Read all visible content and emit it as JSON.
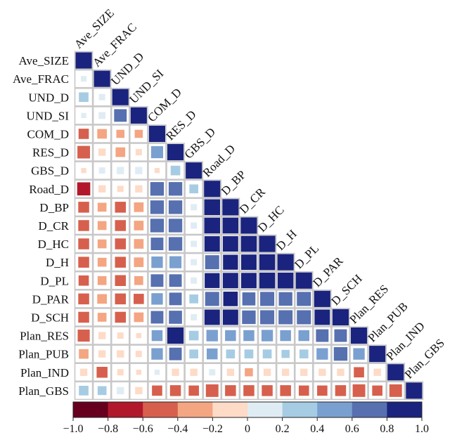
{
  "chart_data": {
    "type": "heatmap",
    "variables": [
      "Ave_SIZE",
      "Ave_FRAC",
      "UND_D",
      "UND_SI",
      "COM_D",
      "RES_D",
      "GBS_D",
      "Road_D",
      "D_BP",
      "D_CR",
      "D_HC",
      "D_H",
      "D_PL",
      "D_PAR",
      "D_SCH",
      "Plan_RES",
      "Plan_PUB",
      "Plan_IND",
      "Plan_GBS"
    ],
    "lower_triangle": [
      [
        1.0
      ],
      [
        0.12,
        1.0
      ],
      [
        0.35,
        0.15,
        1.0
      ],
      [
        0.1,
        0.18,
        0.6,
        1.0
      ],
      [
        -0.4,
        -0.35,
        -0.25,
        -0.25,
        1.0
      ],
      [
        -0.6,
        -0.2,
        -0.35,
        -0.15,
        0.55,
        1.0
      ],
      [
        -0.1,
        0.15,
        0.2,
        0.2,
        -0.1,
        0.35,
        1.0
      ],
      [
        -0.65,
        -0.2,
        -0.15,
        -0.2,
        0.7,
        0.7,
        0.3,
        1.0
      ],
      [
        -0.45,
        -0.3,
        -0.45,
        -0.35,
        0.7,
        0.7,
        0.15,
        0.95,
        1.0
      ],
      [
        -0.45,
        -0.3,
        -0.45,
        -0.35,
        0.7,
        0.7,
        0.15,
        0.95,
        0.95,
        1.0
      ],
      [
        -0.45,
        -0.3,
        -0.45,
        -0.35,
        0.6,
        0.7,
        0.15,
        0.9,
        0.9,
        0.95,
        1.0
      ],
      [
        -0.45,
        -0.3,
        -0.45,
        -0.35,
        0.5,
        0.55,
        0.15,
        0.75,
        0.85,
        0.9,
        0.95,
        1.0
      ],
      [
        -0.4,
        -0.3,
        -0.45,
        -0.3,
        0.6,
        0.6,
        0.15,
        0.85,
        0.9,
        0.9,
        0.95,
        0.95,
        1.0
      ],
      [
        -0.45,
        -0.35,
        -0.45,
        -0.4,
        0.5,
        0.6,
        0.3,
        0.75,
        0.8,
        0.65,
        0.75,
        0.7,
        0.75,
        1.0
      ],
      [
        -0.45,
        -0.3,
        -0.45,
        -0.35,
        0.6,
        0.65,
        0.15,
        0.9,
        0.9,
        0.7,
        0.75,
        0.75,
        0.75,
        0.9,
        1.0
      ],
      [
        -0.55,
        -0.2,
        -0.15,
        -0.1,
        0.45,
        1.0,
        0.35,
        0.5,
        0.45,
        0.45,
        0.5,
        0.45,
        0.45,
        0.6,
        0.6,
        1.0
      ],
      [
        -0.35,
        -0.2,
        -0.2,
        -0.15,
        0.5,
        0.6,
        0.3,
        0.45,
        0.3,
        0.3,
        0.3,
        0.25,
        0.3,
        0.5,
        0.7,
        0.5,
        1.0
      ],
      [
        -0.2,
        -0.45,
        -0.15,
        -0.1,
        0.1,
        -0.2,
        -0.2,
        0.15,
        -0.2,
        -0.25,
        -0.2,
        -0.2,
        -0.2,
        -0.2,
        -0.2,
        -0.4,
        -0.2,
        1.0
      ],
      [
        0.35,
        0.3,
        0.2,
        -0.2,
        -0.4,
        -0.45,
        -0.4,
        -0.6,
        -0.45,
        -0.45,
        -0.45,
        -0.45,
        -0.4,
        -0.4,
        -0.45,
        -0.6,
        -0.4,
        -0.6,
        1.0
      ]
    ],
    "colorbar": {
      "range": [
        -1.0,
        1.0
      ],
      "ticks": [
        "−1.0",
        "−0.8",
        "−0.6",
        "−0.4",
        "−0.2",
        "0",
        "0.2",
        "0.4",
        "0.6",
        "0.8",
        "1.0"
      ],
      "colors": [
        "#67001f",
        "#b2182b",
        "#d6604d",
        "#f4a582",
        "#fddbc7",
        "#e0ecf4",
        "#a6cce3",
        "#7aa0d0",
        "#5670b0",
        "#1a237e"
      ]
    }
  }
}
